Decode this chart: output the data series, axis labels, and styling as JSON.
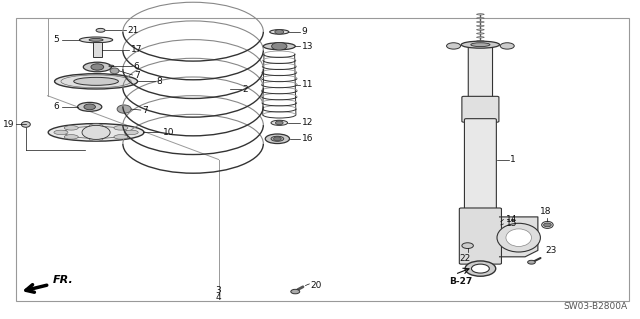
{
  "bg_color": "#ffffff",
  "line_color": "#333333",
  "text_color": "#111111",
  "diagram_code": "SW03-B2800A",
  "border_color": "#aaaaaa",
  "font_size": 6.5
}
